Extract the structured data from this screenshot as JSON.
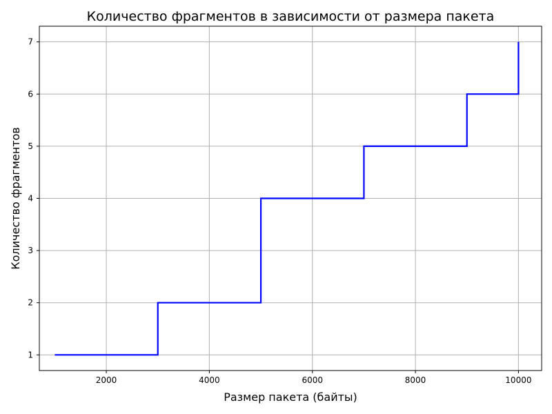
{
  "chart_data": {
    "type": "line",
    "title": "Количество фрагментов в зависимости от размера пакета",
    "xlabel": "Размер пакета (байты)",
    "ylabel": "Количество фрагментов",
    "xlim": [
      700,
      10450
    ],
    "ylim": [
      0.7,
      7.3
    ],
    "x_ticks": [
      2000,
      4000,
      6000,
      8000,
      10000
    ],
    "y_ticks": [
      1,
      2,
      3,
      4,
      5,
      6,
      7
    ],
    "grid": true,
    "line_color": "#0000ff",
    "grid_color": "#b0b0b0",
    "series": [
      {
        "name": "Количество фрагментов",
        "step": true,
        "x": [
          1000,
          3000,
          3000,
          5000,
          5000,
          7000,
          7000,
          9000,
          9000,
          10000,
          10000
        ],
        "y": [
          1,
          1,
          2,
          2,
          4,
          4,
          5,
          5,
          6,
          6,
          7
        ]
      }
    ]
  }
}
